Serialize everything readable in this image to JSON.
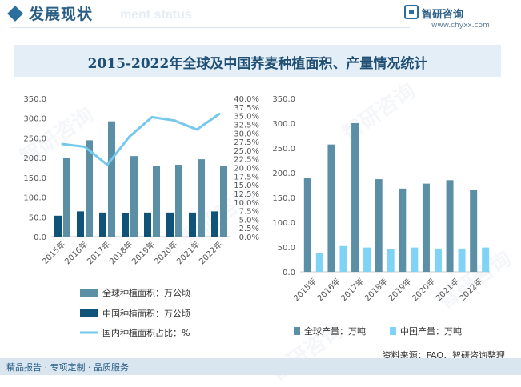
{
  "header": {
    "title": "发展现状",
    "ghost": "ment status"
  },
  "logo": {
    "name": "智研咨询",
    "url": "www.chyxx.com"
  },
  "banner": {
    "title": "2015-2022年全球及中国荞麦种植面积、产量情况统计"
  },
  "watermark": "智研咨询",
  "footer": {
    "left": "精品报告 · 专项定制 · 品质服务",
    "source": "资料来源：FAO、智研咨询整理"
  },
  "colors": {
    "global": "#5a8fa6",
    "china": "#0f5478",
    "share": "#76c8ec",
    "china_output": "#7fd3f4"
  },
  "chart_data": [
    {
      "type": "bar",
      "categories": [
        "2015年",
        "2016年",
        "2017年",
        "2018年",
        "2019年",
        "2020年",
        "2021年",
        "2022年"
      ],
      "series": [
        {
          "name": "全球种植面积：万公顷",
          "values": [
            200,
            244,
            292,
            204,
            178,
            182,
            196,
            178
          ]
        },
        {
          "name": "中国种植面积：万公顷",
          "values": [
            53,
            64,
            61,
            60,
            61,
            61,
            61,
            64
          ]
        },
        {
          "name": "国内种植面积占比：%",
          "type": "line",
          "axis": "right",
          "values": [
            26.8,
            26.0,
            20.8,
            29.0,
            34.6,
            33.6,
            31.0,
            35.5
          ]
        }
      ],
      "y_ticks": [
        "0.0",
        "50.0",
        "100.0",
        "150.0",
        "200.0",
        "250.0",
        "300.0",
        "350.0"
      ],
      "ylim": [
        0,
        350
      ],
      "y2_ticks": [
        "0.0%",
        "2.5%",
        "5.0%",
        "7.5%",
        "10.0%",
        "12.5%",
        "15.0%",
        "17.5%",
        "20.0%",
        "22.5%",
        "25.0%",
        "27.5%",
        "30.0%",
        "32.5%",
        "35.0%",
        "37.5%",
        "40.0%"
      ],
      "y2lim": [
        0,
        40
      ],
      "legend_position": "bottom"
    },
    {
      "type": "bar",
      "categories": [
        "2015年",
        "2016年",
        "2017年",
        "2018年",
        "2019年",
        "2020年",
        "2021年",
        "2022年"
      ],
      "series": [
        {
          "name": "全球产量：万吨",
          "values": [
            190,
            257,
            300,
            187,
            168,
            178,
            185,
            166
          ]
        },
        {
          "name": "中国产量：万吨",
          "values": [
            38,
            52,
            49,
            46,
            49,
            47,
            47,
            49
          ]
        }
      ],
      "y_ticks": [
        "0.0",
        "50.0",
        "100.0",
        "150.0",
        "200.0",
        "250.0",
        "300.0",
        "350.0"
      ],
      "ylim": [
        0,
        350
      ],
      "legend_position": "bottom"
    }
  ]
}
